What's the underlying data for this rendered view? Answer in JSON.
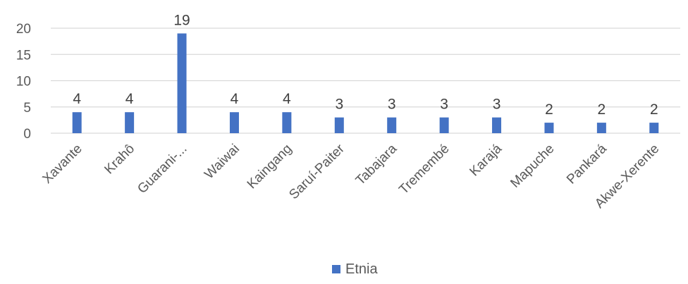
{
  "chart_data": {
    "type": "bar",
    "categories": [
      "Xavante",
      "Krahô",
      "Guarani-...",
      "Waiwai",
      "Kaingang",
      "Saruí-Paiter",
      "Tabajara",
      "Tremembé",
      "Karajá",
      "Mapuche",
      "Pankará",
      "Akwe-Xerente"
    ],
    "series": [
      {
        "name": "Etnia",
        "values": [
          4,
          4,
          19,
          4,
          4,
          3,
          3,
          3,
          3,
          2,
          2,
          2
        ]
      }
    ],
    "title": "",
    "xlabel": "",
    "ylabel": "",
    "ylim": [
      0,
      20
    ],
    "yticks": [
      0,
      5,
      10,
      15,
      20
    ],
    "grid": true,
    "legend_position": "bottom",
    "colors": {
      "bar": "#4472C4",
      "grid": "#D9D9D9",
      "text": "#595959"
    }
  }
}
